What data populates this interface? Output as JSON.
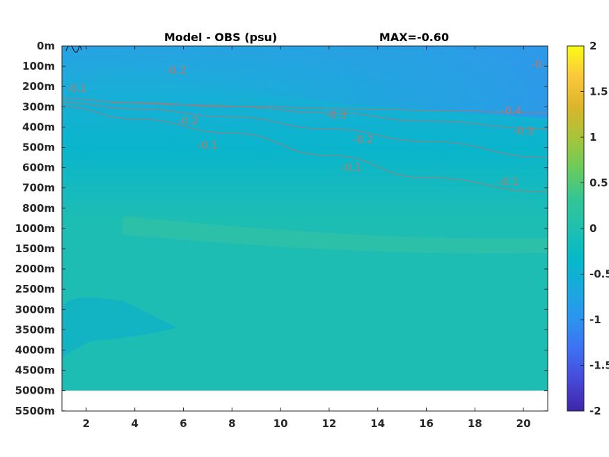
{
  "chart_data": {
    "type": "heatmap",
    "title": "Model - OBS (psu)",
    "max_label": "MAX=-0.60",
    "x_ticks": [
      "2",
      "4",
      "6",
      "8",
      "10",
      "12",
      "14",
      "16",
      "18",
      "20"
    ],
    "x_tick_values": [
      2,
      4,
      6,
      8,
      10,
      12,
      14,
      16,
      18,
      20
    ],
    "xlim": [
      1,
      21
    ],
    "y_ticks": [
      "0m",
      "100m",
      "200m",
      "300m",
      "400m",
      "500m",
      "600m",
      "700m",
      "800m",
      "1000m",
      "1500m",
      "2000m",
      "2500m",
      "3000m",
      "3500m",
      "4000m",
      "4500m",
      "5000m",
      "5500m"
    ],
    "data_bottom_tick_index": 17,
    "colorbar": {
      "ticks": [
        "2",
        "1.5",
        "1",
        "0.5",
        "0",
        "-0.5",
        "-1",
        "-1.5",
        "-2"
      ],
      "tick_values": [
        2,
        1.5,
        1,
        0.5,
        0,
        -0.5,
        -1,
        -1.5,
        -2
      ],
      "clim": [
        -2,
        2
      ],
      "colormap": "parula",
      "color_stops": [
        "#3e26a8",
        "#4748d8",
        "#3e6ff2",
        "#2c93f0",
        "#1aa9df",
        "#05b9c8",
        "#1fc0b0",
        "#34c594",
        "#6ccb5a",
        "#a8c43a",
        "#dcb52a",
        "#fcc73d",
        "#f9fb15"
      ]
    },
    "fill_colors": {
      "surface": "#2aa1e4",
      "upper": "#1aaed8",
      "mid": "#0ab5cc",
      "deep": "#1dbdb4",
      "band": "#38c3a0",
      "low_patch": "#12b4c4"
    },
    "contours": [
      {
        "value": -0.1,
        "depth_index": [
          3.0,
          3.6,
          4.3,
          5.4,
          6.5,
          7.2
        ],
        "x": [
          1,
          4,
          8,
          12,
          16,
          21
        ]
      },
      {
        "value": -0.2,
        "depth_index": [
          2.8,
          3.1,
          3.5,
          4.1,
          4.7,
          5.5
        ],
        "x": [
          1,
          4,
          8,
          12,
          16,
          21
        ]
      },
      {
        "value": -0.3,
        "depth_index": [
          2.6,
          2.8,
          3.0,
          3.3,
          3.7,
          4.1
        ],
        "x": [
          1,
          4,
          8,
          12,
          16,
          21
        ]
      },
      {
        "value": -0.4,
        "depth_index": [
          2.8,
          2.9,
          3.0,
          3.1,
          3.2,
          3.3
        ],
        "x": [
          3,
          6,
          9,
          13,
          17,
          21
        ]
      }
    ],
    "contour_labels": [
      {
        "text": "-0.1",
        "x": 1.6,
        "depth_index": 2.1
      },
      {
        "text": "-0.2",
        "x": 5.7,
        "depth_index": 1.2
      },
      {
        "text": "-0.2",
        "x": 6.2,
        "depth_index": 3.7
      },
      {
        "text": "-0.1",
        "x": 7.0,
        "depth_index": 4.9
      },
      {
        "text": "-0.3",
        "x": 12.3,
        "depth_index": 3.4
      },
      {
        "text": "-0.2",
        "x": 13.4,
        "depth_index": 4.6
      },
      {
        "text": "-0.1",
        "x": 12.9,
        "depth_index": 6.0
      },
      {
        "text": "-0.4",
        "x": 19.5,
        "depth_index": 3.2
      },
      {
        "text": "-0.3",
        "x": 20.0,
        "depth_index": 4.2
      },
      {
        "text": "-0.1",
        "x": 19.4,
        "depth_index": 6.7
      },
      {
        "text": "-0.",
        "x": 20.6,
        "depth_index": 0.9
      }
    ]
  }
}
